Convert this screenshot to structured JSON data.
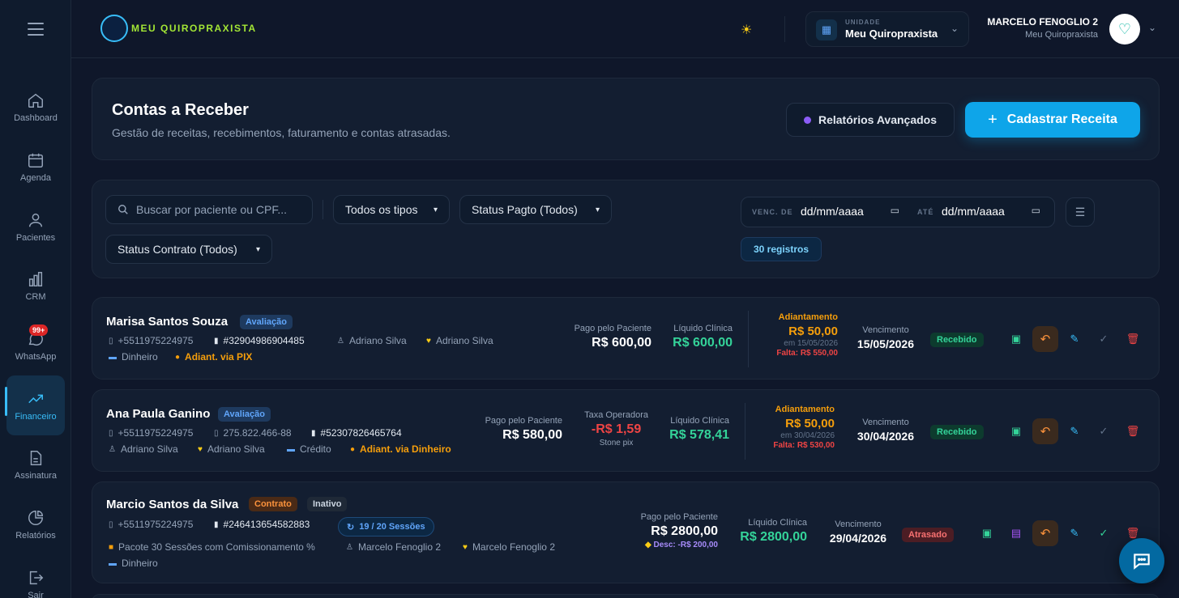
{
  "sidebar": {
    "items": [
      {
        "label": "Dashboard",
        "icon": "home-icon"
      },
      {
        "label": "Agenda",
        "icon": "calendar-icon"
      },
      {
        "label": "Pacientes",
        "icon": "users-icon"
      },
      {
        "label": "CRM",
        "icon": "bar-chart-icon"
      },
      {
        "label": "WhatsApp",
        "icon": "chat-icon",
        "badge": "99+"
      },
      {
        "label": "Financeiro",
        "icon": "trending-up-icon"
      },
      {
        "label": "Assinatura",
        "icon": "document-icon"
      },
      {
        "label": "Relatórios",
        "icon": "pie-chart-icon"
      },
      {
        "label": "Sair",
        "icon": "logout-icon"
      }
    ],
    "active": "Financeiro"
  },
  "topbar": {
    "logo_text": "MEU QUIROPRAXISTA",
    "unit_label": "UNIDADE",
    "unit_value": "Meu Quiropraxista",
    "user_name": "MARCELO FENOGLIO 2",
    "user_org": "Meu Quiropraxista"
  },
  "header": {
    "title": "Contas a Receber",
    "subtitle": "Gestão de receitas, recebimentos, faturamento e contas atrasadas.",
    "reports_button": "Relatórios Avançados",
    "add_button": "Cadastrar Receita"
  },
  "filters": {
    "search_placeholder": "Buscar por paciente ou CPF...",
    "type": "Todos os tipos",
    "pay_status": "Status Pagto (Todos)",
    "contract_status": "Status Contrato (Todos)",
    "due_from_label": "VENC. DE",
    "due_from": "dd/mm/aaaa",
    "due_to_label": "ATÉ",
    "due_to": "dd/mm/aaaa",
    "count": "30 registros"
  },
  "records": [
    {
      "name": "Marisa Santos Souza",
      "tag": "Avaliação",
      "phone": "+5511975224975",
      "code": "#32904986904485",
      "professional": "Adriano Silva",
      "responsible": "Adriano Silva",
      "method": "Dinheiro",
      "advance_via": "Adiant. via PIX",
      "paid_label": "Pago pelo Paciente",
      "paid": "R$ 600,00",
      "net_label": "Líquido Clínica",
      "net": "R$ 600,00",
      "adv_title": "Adiantamento",
      "adv_value": "R$ 50,00",
      "adv_date": "em 15/05/2026",
      "adv_missing": "Falta: R$ 550,00",
      "due_label": "Vencimento",
      "due": "15/05/2026",
      "status": "Recebido"
    },
    {
      "name": "Ana Paula Ganino",
      "tag": "Avaliação",
      "phone": "+5511975224975",
      "cpf": "275.822.466-88",
      "code": "#52307826465764",
      "professional": "Adriano Silva",
      "responsible": "Adriano Silva",
      "method": "Crédito",
      "advance_via": "Adiant. via Dinheiro",
      "paid_label": "Pago pelo Paciente",
      "paid": "R$ 580,00",
      "fee_label": "Taxa Operadora",
      "fee": "-R$ 1,59",
      "fee_sub": "Stone pix",
      "net_label": "Líquido Clínica",
      "net": "R$ 578,41",
      "adv_title": "Adiantamento",
      "adv_value": "R$ 50,00",
      "adv_date": "em 30/04/2026",
      "adv_missing": "Falta: R$ 530,00",
      "due_label": "Vencimento",
      "due": "30/04/2026",
      "status": "Recebido"
    },
    {
      "name": "Marcio Santos da Silva",
      "tag": "Contrato",
      "tag2": "Inativo",
      "phone": "+5511975224975",
      "code": "#246413654582883",
      "sessions": "19 / 20 Sessões",
      "package": "Pacote 30 Sessões com Comissionamento %",
      "professional": "Marcelo Fenoglio 2",
      "responsible": "Marcelo Fenoglio 2",
      "method": "Dinheiro",
      "paid_label": "Pago pelo Paciente",
      "paid": "R$ 2800,00",
      "discount": "Desc: -R$ 200,00",
      "net_label": "Líquido Clínica",
      "net": "R$ 2800,00",
      "due_label": "Vencimento",
      "due": "29/04/2026",
      "status": "Atrasado"
    }
  ]
}
